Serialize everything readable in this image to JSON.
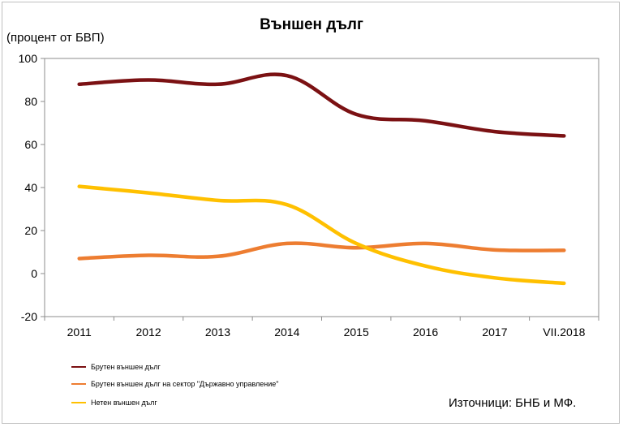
{
  "chart_data": {
    "type": "line",
    "title": "Външен дълг",
    "ylabel": "(процент от БВП)",
    "categories": [
      "2011",
      "2012",
      "2013",
      "2014",
      "2015",
      "2016",
      "2017",
      "VII.2018"
    ],
    "ylim": [
      -20,
      100
    ],
    "yticks": [
      -20,
      0,
      20,
      40,
      60,
      80,
      100
    ],
    "grid": false,
    "legend_position": "bottom-left",
    "series": [
      {
        "name": "Брутен външен дълг",
        "color": "#7b1113",
        "values": [
          88,
          90,
          88,
          92,
          74,
          71,
          66,
          64
        ]
      },
      {
        "name": "Брутен външен дълг на сектор \"Държавно управление\"",
        "color": "#ed7d31",
        "values": [
          7,
          8.5,
          8,
          14,
          12,
          14,
          11,
          10.8
        ]
      },
      {
        "name": "Нетен външен дълг",
        "color": "#ffc000",
        "values": [
          40.5,
          37.5,
          34,
          32,
          14,
          3.5,
          -2,
          -4.5
        ]
      }
    ],
    "source": "Източници: БНБ и МФ."
  }
}
